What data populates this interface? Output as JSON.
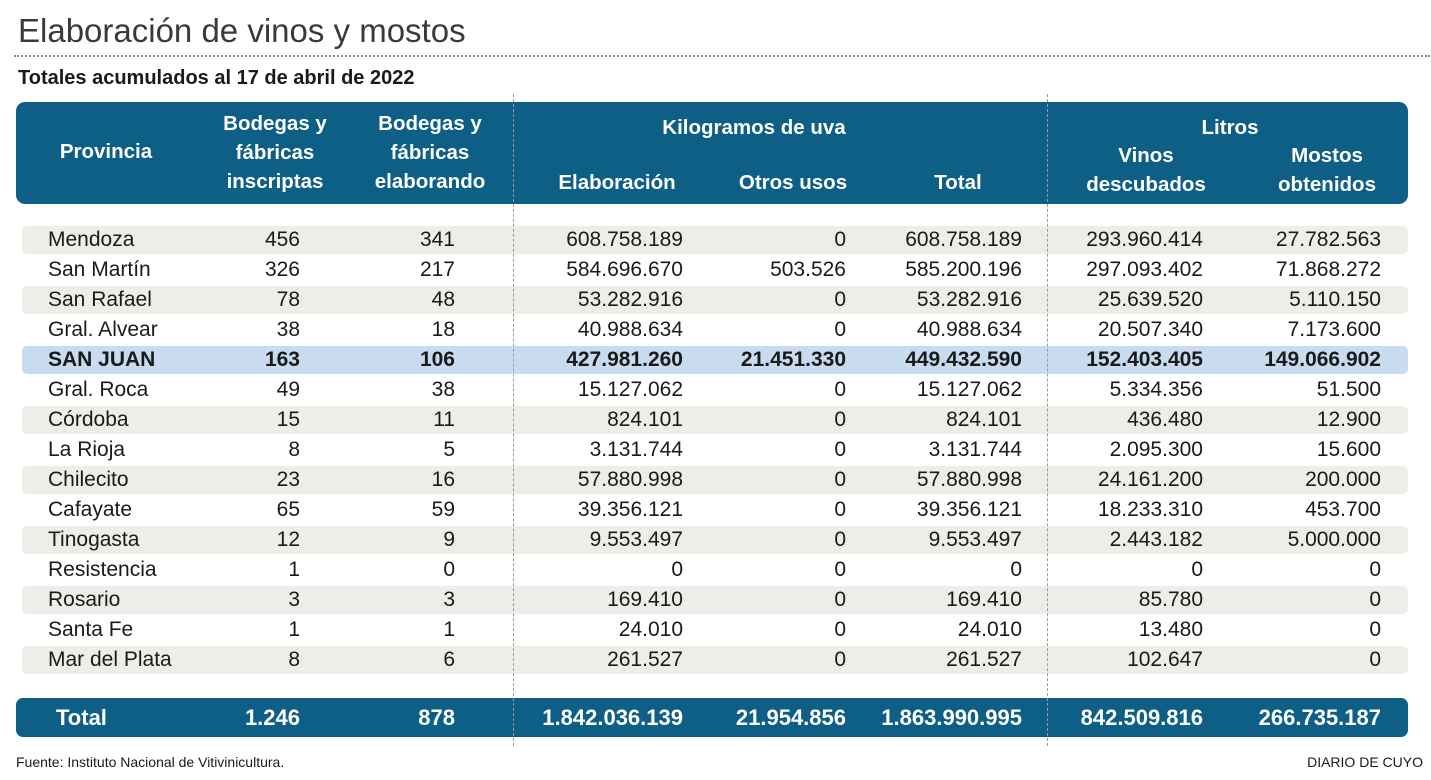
{
  "title": "Elaboración de vinos y mostos",
  "subtitle": "Totales acumulados al 17 de abril de 2022",
  "header": {
    "provincia": "Provincia",
    "inscriptas": [
      "Bodegas y",
      "fábricas",
      "inscriptas"
    ],
    "elaborando": [
      "Bodegas y",
      "fábricas",
      "elaborando"
    ],
    "kg_group": "Kilogramos de uva",
    "elaboracion": "Elaboración",
    "otros_usos": "Otros usos",
    "total": "Total",
    "litros_group": "Litros",
    "vinos": [
      "Vinos",
      "descubados"
    ],
    "mostos": [
      "Mostos",
      "obtenidos"
    ]
  },
  "rows": [
    [
      "Mendoza",
      "456",
      "341",
      "608.758.189",
      "0",
      "608.758.189",
      "293.960.414",
      "27.782.563"
    ],
    [
      "San Martín",
      "326",
      "217",
      "584.696.670",
      "503.526",
      "585.200.196",
      "297.093.402",
      "71.868.272"
    ],
    [
      "San Rafael",
      "78",
      "48",
      "53.282.916",
      "0",
      "53.282.916",
      "25.639.520",
      "5.110.150"
    ],
    [
      "Gral. Alvear",
      "38",
      "18",
      "40.988.634",
      "0",
      "40.988.634",
      "20.507.340",
      "7.173.600"
    ],
    [
      "SAN JUAN",
      "163",
      "106",
      "427.981.260",
      "21.451.330",
      "449.432.590",
      "152.403.405",
      "149.066.902"
    ],
    [
      "Gral. Roca",
      "49",
      "38",
      "15.127.062",
      "0",
      "15.127.062",
      "5.334.356",
      "51.500"
    ],
    [
      "Córdoba",
      "15",
      "11",
      "824.101",
      "0",
      "824.101",
      "436.480",
      "12.900"
    ],
    [
      "La Rioja",
      "8",
      "5",
      "3.131.744",
      "0",
      "3.131.744",
      "2.095.300",
      "15.600"
    ],
    [
      "Chilecito",
      "23",
      "16",
      "57.880.998",
      "0",
      "57.880.998",
      "24.161.200",
      "200.000"
    ],
    [
      "Cafayate",
      "65",
      "59",
      "39.356.121",
      "0",
      "39.356.121",
      "18.233.310",
      "453.700"
    ],
    [
      "Tinogasta",
      "12",
      "9",
      "9.553.497",
      "0",
      "9.553.497",
      "2.443.182",
      "5.000.000"
    ],
    [
      "Resistencia",
      "1",
      "0",
      "0",
      "0",
      "0",
      "0",
      "0"
    ],
    [
      "Rosario",
      "3",
      "3",
      "169.410",
      "0",
      "169.410",
      "85.780",
      "0"
    ],
    [
      "Santa Fe",
      "1",
      "1",
      "24.010",
      "0",
      "24.010",
      "13.480",
      "0"
    ],
    [
      "Mar del Plata",
      "8",
      "6",
      "261.527",
      "0",
      "261.527",
      "102.647",
      "0"
    ]
  ],
  "highlight_row": "SAN JUAN",
  "total": [
    "Total",
    "1.246",
    "878",
    "1.842.036.139",
    "21.954.856",
    "1.863.990.995",
    "842.509.816",
    "266.735.187"
  ],
  "source": "Fuente: Instituto Nacional de Vitivinicultura.",
  "brand": "DIARIO DE CUYO",
  "colors": {
    "header": "#0e5f86",
    "stripe": "#eeede7",
    "highlight": "#c9dcef"
  }
}
